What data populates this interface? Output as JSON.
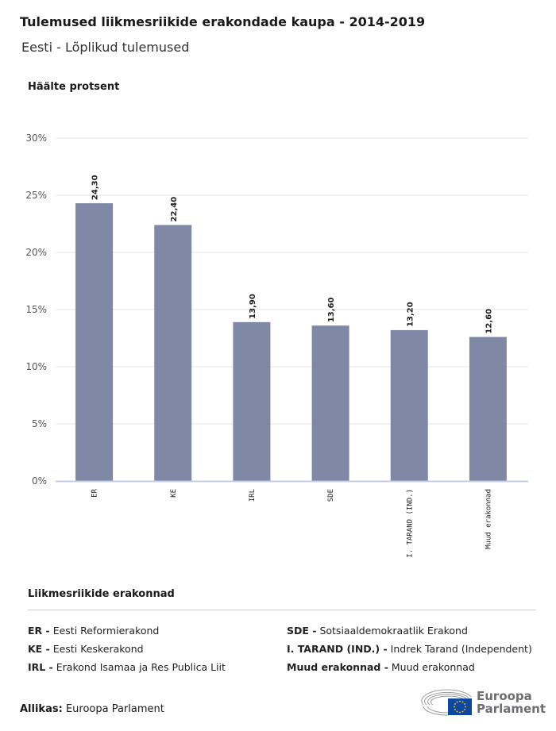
{
  "title": "Tulemused liikmesriikide erakondade kaupa - 2014-2019",
  "subtitle": "Eesti - Lõplikud tulemused",
  "chart_data": {
    "type": "bar",
    "ylabel": "Häälte protsent",
    "categories": [
      "ER",
      "KE",
      "IRL",
      "SDE",
      "I. TARAND (IND.)",
      "Muud erakonnad"
    ],
    "values": [
      24.3,
      22.4,
      13.9,
      13.6,
      13.2,
      12.6
    ],
    "data_labels": [
      "24,30",
      "22,40",
      "13,90",
      "13,60",
      "13,20",
      "12,60"
    ],
    "yticks": [
      "0%",
      "5%",
      "10%",
      "15%",
      "20%",
      "25%",
      "30%"
    ],
    "ylim": [
      0,
      30
    ],
    "grid": true,
    "bar_color": "#7f89a6"
  },
  "legend": {
    "title": "Liikmesriikide erakonnad",
    "items": [
      {
        "abbr": "ER -",
        "name": "Eesti Reformierakond"
      },
      {
        "abbr": "KE -",
        "name": "Eesti Keskerakond"
      },
      {
        "abbr": "IRL -",
        "name": "Erakond Isamaa ja Res Publica Liit"
      },
      {
        "abbr": "SDE -",
        "name": "Sotsiaaldemokraatlik Erakond"
      },
      {
        "abbr": "I. TARAND (IND.) -",
        "name": "Indrek Tarand (Independent)"
      },
      {
        "abbr": "Muud erakonnad -",
        "name": "Muud erakonnad"
      }
    ]
  },
  "source": {
    "label": "Allikas:",
    "value": "Euroopa Parlament"
  },
  "logo": {
    "line1": "Euroopa",
    "line2": "Parlament"
  }
}
